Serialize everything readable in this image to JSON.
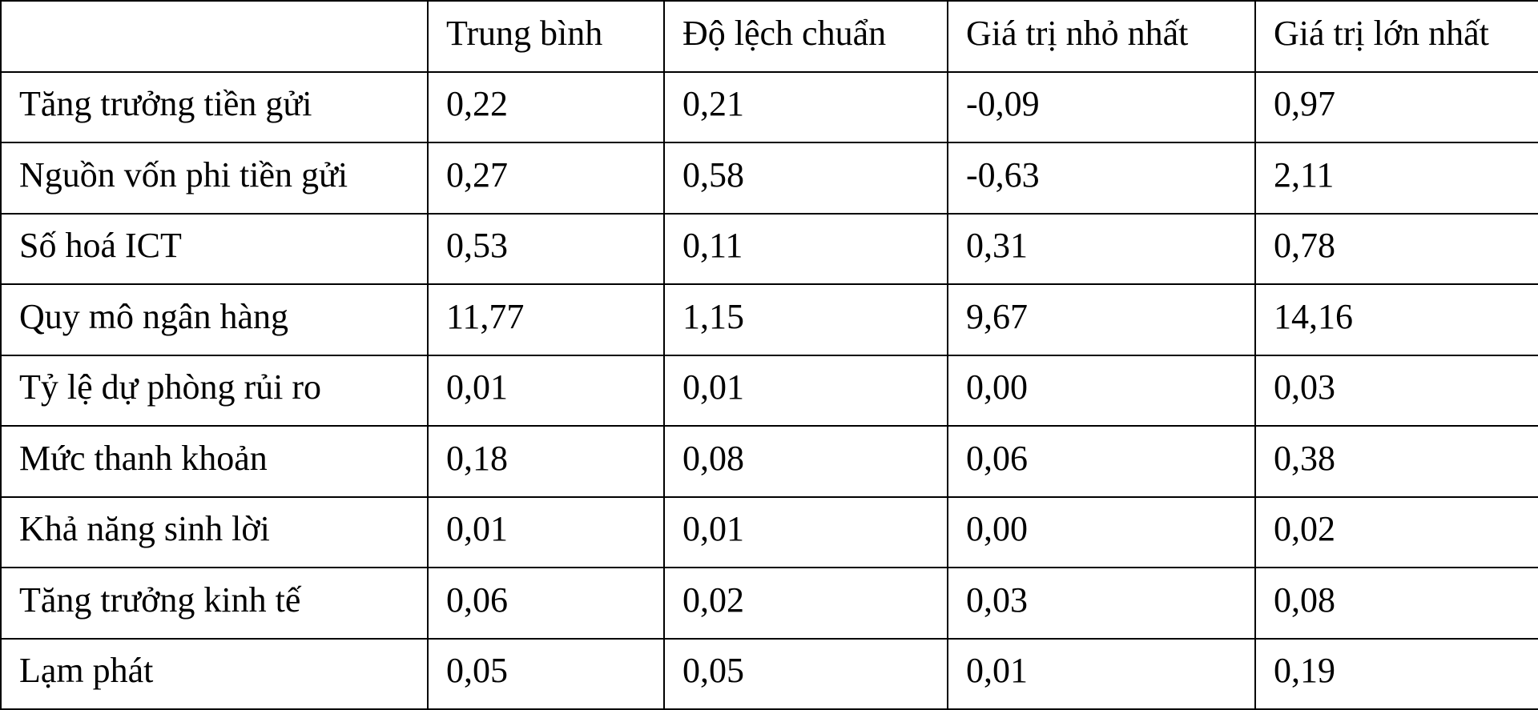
{
  "table": {
    "columns": [
      "Trung bình",
      "Độ lệch chuẩn",
      "Giá trị nhỏ nhất",
      "Giá trị lớn nhất"
    ],
    "rows": [
      [
        "Tăng trưởng tiền gửi",
        "0,22",
        "0,21",
        "-0,09",
        "0,97"
      ],
      [
        "Nguồn vốn phi tiền gửi",
        "0,27",
        "0,58",
        "-0,63",
        "2,11"
      ],
      [
        "Số hoá ICT",
        "0,53",
        "0,11",
        "0,31",
        "0,78"
      ],
      [
        "Quy mô ngân hàng",
        "11,77",
        "1,15",
        "9,67",
        "14,16"
      ],
      [
        "Tỷ lệ dự phòng rủi ro",
        "0,01",
        "0,01",
        "0,00",
        "0,03"
      ],
      [
        "Mức thanh khoản",
        "0,18",
        "0,08",
        "0,06",
        "0,38"
      ],
      [
        "Khả năng sinh lời",
        "0,01",
        "0,01",
        "0,00",
        "0,02"
      ],
      [
        "Tăng trưởng kinh tế",
        "0,06",
        "0,02",
        "0,03",
        "0,08"
      ],
      [
        "Lạm phát",
        "0,05",
        "0,05",
        "0,01",
        "0,19"
      ]
    ]
  }
}
